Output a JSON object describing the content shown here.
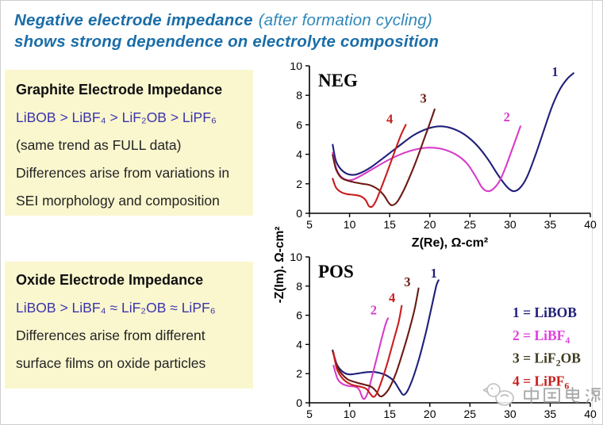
{
  "title": {
    "line1_bold": "Negative electrode impedance",
    "line1_light": "(after formation cycling)",
    "line2_bold": "shows strong dependence on electrolyte composition"
  },
  "boxes": [
    {
      "heading": "Graphite Electrode Impedance",
      "formula": "LiBOB > LiBF₄ > LiF₂OB > LiPF₆",
      "lines": [
        "(same trend as FULL data)",
        "Differences arise from variations in",
        "SEI morphology and composition"
      ]
    },
    {
      "heading": "Oxide Electrode Impedance",
      "formula": "LiBOB > LiBF₄ ≈ LiF₂OB ≈ LiPF₆",
      "lines": [
        "Differences arise from different",
        "surface films on oxide particles"
      ]
    }
  ],
  "watermark": {
    "text": "中国电源"
  },
  "chart_data": [
    {
      "type": "line",
      "panel": "NEG",
      "xlabel": "Z(Re), Ω-cm²",
      "ylabel": "-Z(Im). Ω-cm²",
      "xlim": [
        5,
        40
      ],
      "ylim": [
        0,
        10
      ],
      "xticks": [
        5,
        10,
        15,
        20,
        25,
        30,
        35,
        40
      ],
      "yticks": [
        0,
        2,
        4,
        6,
        8,
        10
      ],
      "grid": false,
      "series": [
        {
          "name": "1",
          "electrolyte": "LiBOB",
          "color": "#1f1f7a",
          "label_xy": [
            35.6,
            9.3
          ],
          "points": [
            [
              7.9,
              4.65
            ],
            [
              8.3,
              3.55
            ],
            [
              8.9,
              3.0
            ],
            [
              9.6,
              2.7
            ],
            [
              10.4,
              2.6
            ],
            [
              11.3,
              2.72
            ],
            [
              12.6,
              3.1
            ],
            [
              14.2,
              3.75
            ],
            [
              16,
              4.5
            ],
            [
              18,
              5.3
            ],
            [
              19.8,
              5.75
            ],
            [
              21.3,
              5.9
            ],
            [
              22.8,
              5.75
            ],
            [
              24.3,
              5.35
            ],
            [
              25.8,
              4.65
            ],
            [
              27.2,
              3.7
            ],
            [
              28.5,
              2.6
            ],
            [
              29.6,
              1.8
            ],
            [
              30.4,
              1.5
            ],
            [
              31.2,
              1.7
            ],
            [
              32.1,
              2.45
            ],
            [
              33.1,
              3.85
            ],
            [
              34.2,
              5.6
            ],
            [
              35.2,
              7.2
            ],
            [
              36.2,
              8.4
            ],
            [
              37.1,
              9.1
            ],
            [
              37.9,
              9.5
            ]
          ]
        },
        {
          "name": "2",
          "electrolyte": "LiBF₄",
          "color": "#d83cc8",
          "label_xy": [
            29.6,
            6.25
          ],
          "points": [
            [
              7.9,
              4.1
            ],
            [
              8.3,
              3.1
            ],
            [
              8.9,
              2.5
            ],
            [
              9.7,
              2.25
            ],
            [
              10.5,
              2.3
            ],
            [
              11.6,
              2.6
            ],
            [
              13,
              3.05
            ],
            [
              14.8,
              3.6
            ],
            [
              16.6,
              4.05
            ],
            [
              18.4,
              4.35
            ],
            [
              20,
              4.45
            ],
            [
              21.6,
              4.35
            ],
            [
              23.2,
              4.0
            ],
            [
              24.6,
              3.4
            ],
            [
              25.7,
              2.5
            ],
            [
              26.5,
              1.75
            ],
            [
              27.2,
              1.5
            ],
            [
              27.9,
              1.65
            ],
            [
              28.7,
              2.2
            ],
            [
              29.5,
              3.2
            ],
            [
              30.3,
              4.4
            ],
            [
              30.9,
              5.3
            ],
            [
              31.3,
              5.9
            ]
          ]
        },
        {
          "name": "3",
          "electrolyte": "LiF₂OB",
          "color": "#6b1a14",
          "label_xy": [
            19.2,
            7.5
          ],
          "points": [
            [
              7.9,
              3.95
            ],
            [
              8.3,
              3.0
            ],
            [
              8.9,
              2.45
            ],
            [
              9.6,
              2.25
            ],
            [
              10.6,
              2.1
            ],
            [
              11.6,
              2.0
            ],
            [
              12.6,
              1.9
            ],
            [
              13.6,
              1.6
            ],
            [
              14.3,
              1.2
            ],
            [
              14.9,
              0.7
            ],
            [
              15.3,
              0.55
            ],
            [
              15.9,
              0.75
            ],
            [
              16.6,
              1.4
            ],
            [
              17.4,
              2.35
            ],
            [
              18.3,
              3.55
            ],
            [
              19.2,
              4.9
            ],
            [
              20,
              6.1
            ],
            [
              20.6,
              7.05
            ]
          ]
        },
        {
          "name": "4",
          "electrolyte": "LiPF₆",
          "color": "#c81e1e",
          "label_xy": [
            15.0,
            6.1
          ],
          "points": [
            [
              7.9,
              2.35
            ],
            [
              8.3,
              1.75
            ],
            [
              8.9,
              1.45
            ],
            [
              9.7,
              1.3
            ],
            [
              10.6,
              1.25
            ],
            [
              11.4,
              1.15
            ],
            [
              12.0,
              0.9
            ],
            [
              12.4,
              0.5
            ],
            [
              12.8,
              0.45
            ],
            [
              13.3,
              0.85
            ],
            [
              14,
              1.8
            ],
            [
              14.8,
              2.95
            ],
            [
              15.6,
              4.15
            ],
            [
              16.4,
              5.3
            ],
            [
              17,
              6.0
            ]
          ]
        }
      ]
    },
    {
      "type": "line",
      "panel": "POS",
      "xlabel": "",
      "ylabel": "-Z(Im). Ω-cm²",
      "xlim": [
        5,
        40
      ],
      "ylim": [
        0,
        10
      ],
      "xticks": [
        5,
        10,
        15,
        20,
        25,
        30,
        35,
        40
      ],
      "yticks": [
        0,
        2,
        4,
        6,
        8,
        10
      ],
      "grid": false,
      "legend": [
        {
          "text": "1 = LiBOB",
          "color": "#1f1f7a"
        },
        {
          "text": "2 = LiBF₄",
          "color": "#e040dd"
        },
        {
          "text": "3 = LiF₂OB",
          "color": "#3f3c22"
        },
        {
          "text": "4 = LiPF₆",
          "color": "#c81e1e"
        }
      ],
      "series": [
        {
          "name": "1",
          "electrolyte": "LiBOB",
          "color": "#1f1f7a",
          "label_xy": [
            20.5,
            8.6
          ],
          "points": [
            [
              7.9,
              3.6
            ],
            [
              8.4,
              2.65
            ],
            [
              9.1,
              2.15
            ],
            [
              9.9,
              1.95
            ],
            [
              10.9,
              2.0
            ],
            [
              12.1,
              2.1
            ],
            [
              13.3,
              2.1
            ],
            [
              14.5,
              1.9
            ],
            [
              15.5,
              1.5
            ],
            [
              16.2,
              0.9
            ],
            [
              16.7,
              0.55
            ],
            [
              17.2,
              0.8
            ],
            [
              17.9,
              1.7
            ],
            [
              18.7,
              3.1
            ],
            [
              19.5,
              4.8
            ],
            [
              20.2,
              6.5
            ],
            [
              20.8,
              8.0
            ],
            [
              21.1,
              8.4
            ]
          ]
        },
        {
          "name": "2",
          "electrolyte": "LiBF₄",
          "color": "#d83cc8",
          "label_xy": [
            13.0,
            6.05
          ],
          "points": [
            [
              8.0,
              2.55
            ],
            [
              8.5,
              1.65
            ],
            [
              9.1,
              1.3
            ],
            [
              9.9,
              1.15
            ],
            [
              10.7,
              1.1
            ],
            [
              11.2,
              0.9
            ],
            [
              11.6,
              0.35
            ],
            [
              11.9,
              0.3
            ],
            [
              12.3,
              0.75
            ],
            [
              12.8,
              1.8
            ],
            [
              13.4,
              3.1
            ],
            [
              14.0,
              4.4
            ],
            [
              14.5,
              5.4
            ],
            [
              14.8,
              5.8
            ]
          ]
        },
        {
          "name": "3",
          "electrolyte": "LiF₂OB",
          "color": "#6b1a14",
          "label_xy": [
            17.2,
            8.0
          ],
          "points": [
            [
              7.9,
              3.55
            ],
            [
              8.4,
              2.55
            ],
            [
              9.0,
              2.0
            ],
            [
              9.8,
              1.6
            ],
            [
              10.8,
              1.4
            ],
            [
              11.8,
              1.25
            ],
            [
              12.7,
              1.1
            ],
            [
              13.3,
              0.8
            ],
            [
              13.8,
              0.45
            ],
            [
              14.3,
              0.55
            ],
            [
              15.0,
              1.05
            ],
            [
              15.8,
              2.05
            ],
            [
              16.6,
              3.4
            ],
            [
              17.4,
              4.9
            ],
            [
              18.1,
              6.4
            ],
            [
              18.6,
              7.85
            ]
          ]
        },
        {
          "name": "4",
          "electrolyte": "LiPF₆",
          "color": "#c81e1e",
          "label_xy": [
            15.3,
            6.9
          ],
          "points": [
            [
              8.0,
              3.45
            ],
            [
              8.4,
              2.35
            ],
            [
              9.0,
              1.75
            ],
            [
              9.7,
              1.4
            ],
            [
              10.5,
              1.2
            ],
            [
              11.4,
              1.1
            ],
            [
              12.1,
              0.95
            ],
            [
              12.6,
              0.6
            ],
            [
              13.0,
              0.4
            ],
            [
              13.4,
              0.65
            ],
            [
              14.0,
              1.5
            ],
            [
              14.7,
              2.7
            ],
            [
              15.4,
              4.1
            ],
            [
              16.1,
              5.5
            ],
            [
              16.5,
              6.65
            ]
          ]
        }
      ]
    }
  ]
}
